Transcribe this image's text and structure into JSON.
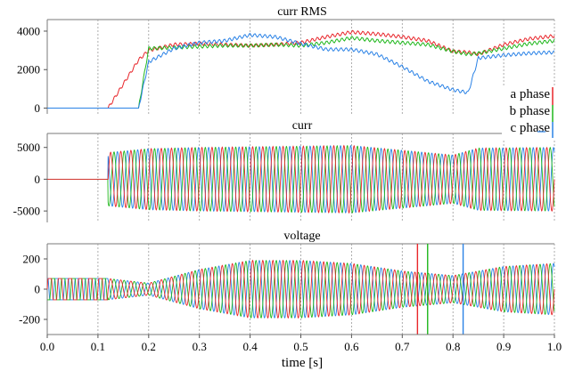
{
  "colors": {
    "a": "#e8262b",
    "b": "#1fb71c",
    "c": "#2a82e6",
    "grid": "#9a9a9a",
    "axis": "#7a7a7a"
  },
  "xaxis": {
    "label": "time [s]",
    "range": [
      0.0,
      1.0
    ],
    "ticks": [
      0.0,
      0.1,
      0.2,
      0.3,
      0.4,
      0.5,
      0.6,
      0.7,
      0.8,
      0.9,
      1.0
    ],
    "tick_labels": [
      "0.0",
      "0.1",
      "0.2",
      "0.3",
      "0.4",
      "0.5",
      "0.6",
      "0.7",
      "0.8",
      "0.9",
      "1.0"
    ]
  },
  "legend": {
    "placement": "right, between top and middle panels",
    "entries": [
      "a phase",
      "b phase",
      "c phase"
    ]
  },
  "chart_data": [
    {
      "type": "line",
      "title": "curr RMS",
      "ylim": [
        -300,
        4600
      ],
      "yticks": [
        0,
        2000,
        4000
      ],
      "ytick_labels": [
        "0",
        "2000",
        "4000"
      ],
      "grid": "vertical dashed",
      "x": [
        0.0,
        0.12,
        0.18,
        0.2,
        0.25,
        0.3,
        0.35,
        0.4,
        0.45,
        0.5,
        0.55,
        0.6,
        0.65,
        0.7,
        0.75,
        0.8,
        0.83,
        0.85,
        0.9,
        0.95,
        1.0
      ],
      "series": [
        {
          "name": "a phase",
          "values": [
            0,
            0,
            2500,
            3000,
            3300,
            3350,
            3300,
            3250,
            3300,
            3400,
            3700,
            3950,
            3850,
            3700,
            3500,
            2950,
            2900,
            2800,
            3300,
            3600,
            3750
          ]
        },
        {
          "name": "b phase",
          "values": [
            0,
            0,
            0,
            3100,
            3150,
            3200,
            3250,
            3250,
            3300,
            3250,
            3400,
            3650,
            3500,
            3400,
            3300,
            2950,
            2800,
            2850,
            3100,
            3350,
            3500
          ]
        },
        {
          "name": "c phase",
          "values": [
            0,
            0,
            0,
            2400,
            3100,
            3400,
            3500,
            3800,
            3700,
            3350,
            3050,
            3050,
            2800,
            2150,
            1400,
            950,
            800,
            2600,
            2750,
            2850,
            2900
          ]
        }
      ]
    },
    {
      "type": "line",
      "title": "curr",
      "ylim": [
        -6800,
        7200
      ],
      "yticks": [
        -5000,
        0,
        5000
      ],
      "ytick_labels": [
        "-5000",
        "0",
        "5000"
      ],
      "grid": "vertical dashed",
      "signal": "three-phase sinusoidal current, zero before ~0.12 s",
      "onset": 0.12,
      "envelope": {
        "x": [
          0.12,
          0.2,
          0.3,
          0.5,
          0.6,
          0.8,
          0.85,
          1.0
        ],
        "amplitude": [
          4200,
          4800,
          5000,
          5200,
          5300,
          3800,
          4900,
          5000
        ]
      }
    },
    {
      "type": "line",
      "title": "voltage",
      "ylim": [
        -300,
        300
      ],
      "yticks": [
        -200,
        0,
        200
      ],
      "ytick_labels": [
        "-200",
        "0",
        "200"
      ],
      "grid": "vertical dashed",
      "signal": "three-phase sinusoidal voltage, clipped ±70 before ~0.12 s, transients near 0.73, 0.75, 0.82",
      "envelope": {
        "x": [
          0.0,
          0.12,
          0.2,
          0.3,
          0.4,
          0.5,
          0.6,
          0.7,
          0.8,
          0.9,
          1.0
        ],
        "amplitude": [
          70,
          70,
          40,
          130,
          190,
          190,
          170,
          120,
          90,
          150,
          170
        ]
      },
      "transients_x": [
        0.73,
        0.75,
        0.82
      ]
    }
  ]
}
